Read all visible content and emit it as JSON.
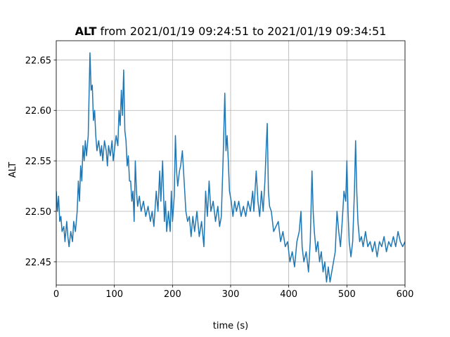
{
  "chart_data": {
    "type": "line",
    "title_bold": "ALT",
    "title": "from 2021/01/19 09:24:51 to 2021/01/19 09:34:51",
    "xlabel": "time (s)",
    "ylabel": "ALT",
    "color": "#1f77b4",
    "grid": true,
    "xlim": [
      0,
      600
    ],
    "xticks": [
      0,
      100,
      200,
      300,
      400,
      500,
      600
    ],
    "ylim": [
      22.427,
      22.669
    ],
    "yticks": [
      22.45,
      {
        "value": 22.5,
        "label": "22.50"
      },
      22.55,
      {
        "value": 22.6,
        "label": "22.60"
      },
      22.65
    ],
    "x": [
      0,
      2,
      4,
      6,
      8,
      10,
      13,
      15,
      18,
      20,
      22,
      25,
      28,
      30,
      33,
      36,
      38,
      40,
      42,
      44,
      46,
      48,
      50,
      52,
      55,
      58,
      60,
      62,
      64,
      66,
      68,
      70,
      73,
      76,
      78,
      80,
      83,
      86,
      88,
      90,
      93,
      96,
      98,
      100,
      103,
      106,
      108,
      110,
      112,
      114,
      116,
      118,
      120,
      122,
      124,
      126,
      128,
      130,
      132,
      134,
      136,
      138,
      140,
      143,
      146,
      150,
      154,
      158,
      162,
      165,
      168,
      172,
      175,
      178,
      180,
      183,
      186,
      188,
      190,
      193,
      196,
      198,
      200,
      203,
      205,
      207,
      209,
      212,
      214,
      217,
      220,
      223,
      226,
      229,
      232,
      235,
      238,
      242,
      246,
      250,
      254,
      257,
      260,
      263,
      266,
      270,
      274,
      278,
      281,
      284,
      287,
      290,
      292,
      294,
      296,
      298,
      301,
      304,
      307,
      310,
      314,
      318,
      322,
      326,
      330,
      334,
      338,
      340,
      344,
      347,
      350,
      353,
      356,
      359,
      361,
      363,
      365,
      367,
      370,
      374,
      378,
      382,
      386,
      390,
      394,
      398,
      402,
      406,
      410,
      414,
      418,
      421,
      423,
      426,
      430,
      434,
      437,
      440,
      442,
      444,
      447,
      450,
      453,
      456,
      459,
      462,
      465,
      468,
      471,
      474,
      477,
      480,
      483,
      486,
      489,
      492,
      495,
      498,
      500,
      502,
      504,
      507,
      510,
      513,
      515,
      517,
      519,
      522,
      525,
      528,
      532,
      536,
      540,
      544,
      548,
      552,
      556,
      560,
      564,
      568,
      572,
      576,
      580,
      584,
      588,
      592,
      596,
      600
    ],
    "values": [
      22.52,
      22.5,
      22.515,
      22.49,
      22.495,
      22.48,
      22.485,
      22.47,
      22.49,
      22.475,
      22.465,
      22.48,
      22.47,
      22.49,
      22.48,
      22.5,
      22.53,
      22.51,
      22.545,
      22.53,
      22.565,
      22.55,
      22.57,
      22.555,
      22.575,
      22.657,
      22.62,
      22.625,
      22.59,
      22.6,
      22.575,
      22.56,
      22.57,
      22.555,
      22.565,
      22.55,
      22.57,
      22.56,
      22.545,
      22.565,
      22.555,
      22.57,
      22.55,
      22.56,
      22.575,
      22.565,
      22.6,
      22.585,
      22.62,
      22.595,
      22.64,
      22.58,
      22.57,
      22.545,
      22.555,
      22.53,
      22.53,
      22.51,
      22.52,
      22.49,
      22.55,
      22.52,
      22.505,
      22.515,
      22.5,
      22.51,
      22.495,
      22.505,
      22.49,
      22.5,
      22.485,
      22.52,
      22.5,
      22.54,
      22.51,
      22.55,
      22.49,
      22.51,
      22.48,
      22.5,
      22.48,
      22.52,
      22.49,
      22.515,
      22.575,
      22.54,
      22.525,
      22.54,
      22.545,
      22.56,
      22.53,
      22.5,
      22.49,
      22.495,
      22.475,
      22.495,
      22.48,
      22.5,
      22.475,
      22.49,
      22.465,
      22.52,
      22.495,
      22.53,
      22.5,
      22.51,
      22.49,
      22.505,
      22.485,
      22.495,
      22.55,
      22.617,
      22.56,
      22.575,
      22.55,
      22.52,
      22.51,
      22.495,
      22.51,
      22.5,
      22.51,
      22.495,
      22.505,
      22.495,
      22.51,
      22.5,
      22.52,
      22.5,
      22.54,
      22.51,
      22.495,
      22.52,
      22.5,
      22.53,
      22.56,
      22.587,
      22.52,
      22.505,
      22.5,
      22.48,
      22.485,
      22.49,
      22.47,
      22.48,
      22.465,
      22.47,
      22.45,
      22.46,
      22.445,
      22.47,
      22.48,
      22.5,
      22.465,
      22.45,
      22.46,
      22.44,
      22.47,
      22.54,
      22.5,
      22.48,
      22.46,
      22.47,
      22.45,
      22.46,
      22.44,
      22.45,
      22.43,
      22.445,
      22.43,
      22.44,
      22.45,
      22.46,
      22.5,
      22.48,
      22.465,
      22.49,
      22.52,
      22.51,
      22.55,
      22.5,
      22.47,
      22.455,
      22.47,
      22.52,
      22.57,
      22.52,
      22.49,
      22.47,
      22.475,
      22.465,
      22.48,
      22.465,
      22.47,
      22.46,
      22.47,
      22.455,
      22.47,
      22.465,
      22.475,
      22.46,
      22.47,
      22.465,
      22.475,
      22.465,
      22.48,
      22.47,
      22.465,
      22.47
    ]
  }
}
